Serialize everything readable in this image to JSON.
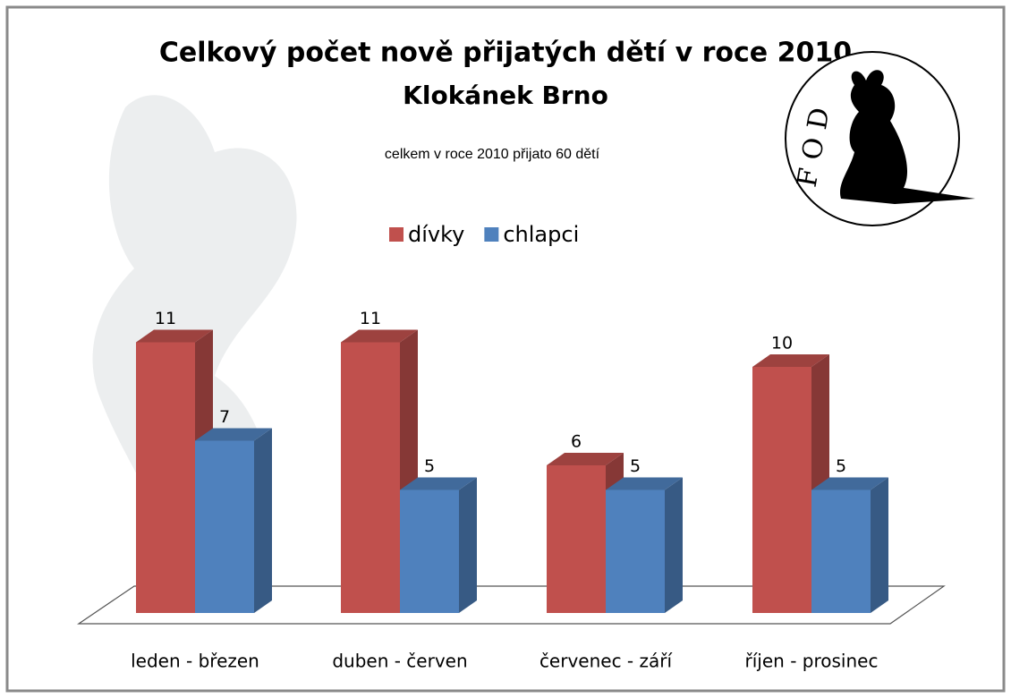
{
  "chart_data": {
    "type": "bar3d",
    "title": "Celkový počet nově přijatých dětí v roce 2010",
    "subtitle": "Klokánek Brno",
    "annotation": "celkem v roce 2010 přijato 60 dětí",
    "logo_text": "FOD",
    "categories": [
      "leden - březen",
      "duben - červen",
      "červenec - září",
      "říjen - prosinec"
    ],
    "series": [
      {
        "name": "dívky",
        "color": "#c0504d",
        "values": [
          11,
          11,
          6,
          10
        ]
      },
      {
        "name": "chlapci",
        "color": "#4f81bd",
        "values": [
          7,
          5,
          5,
          5
        ]
      }
    ]
  }
}
